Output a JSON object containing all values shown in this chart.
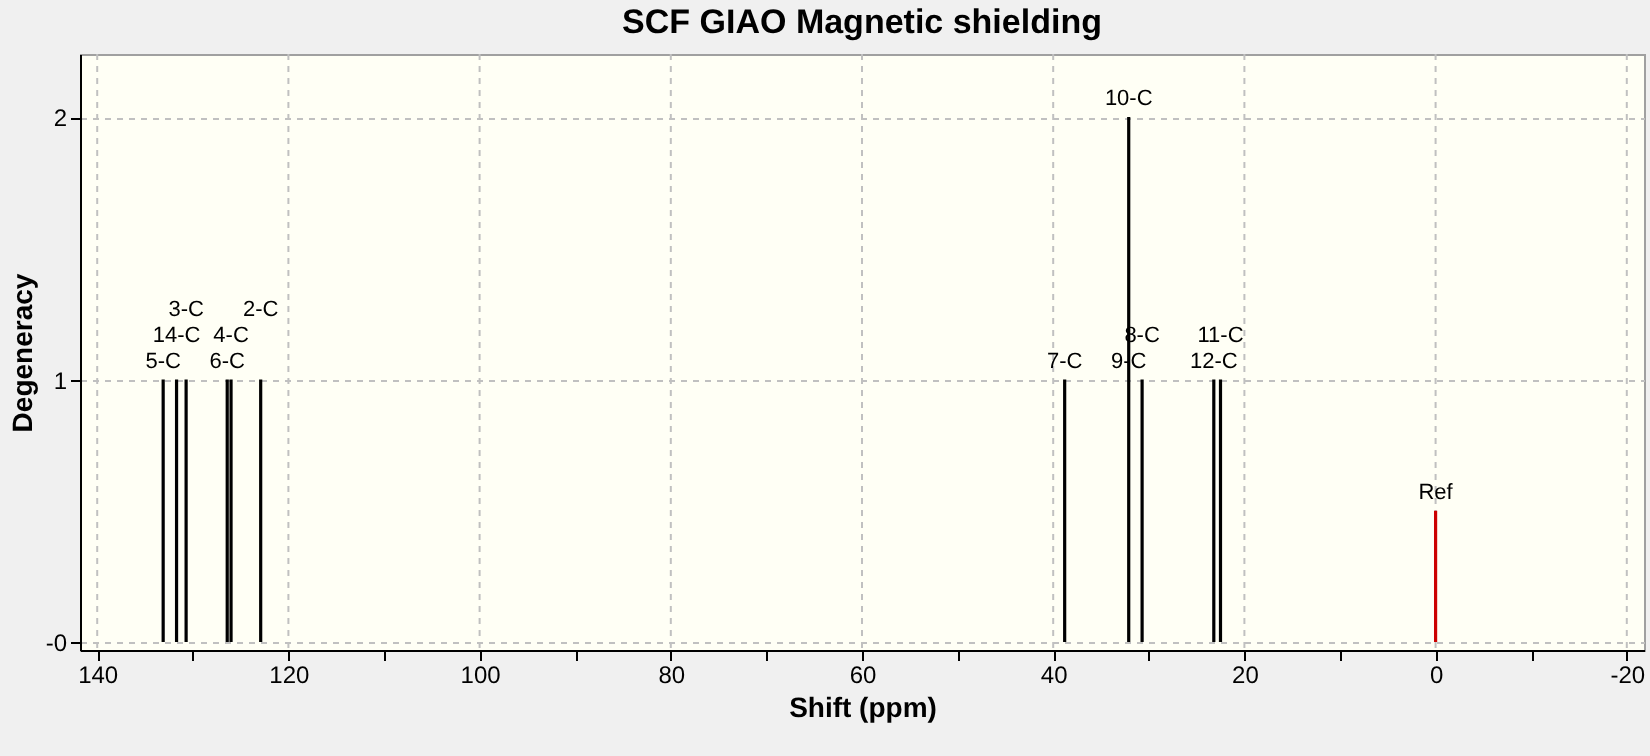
{
  "chart_data": {
    "type": "bar",
    "title": "SCF GIAO Magnetic shielding",
    "xlabel": "Shift (ppm)",
    "ylabel": "Degeneracy",
    "xlim": [
      141.8,
      -21.8
    ],
    "ylim": [
      -0.03,
      2.24
    ],
    "xticks": [
      140,
      {
        "value": 130,
        "label": null
      },
      120,
      {
        "value": 110,
        "label": null
      },
      100,
      {
        "value": 90,
        "label": null
      },
      80,
      {
        "value": 70,
        "label": null
      },
      60,
      {
        "value": 50,
        "label": null
      },
      40,
      {
        "value": 30,
        "label": null
      },
      20,
      {
        "value": 10,
        "label": null
      },
      0,
      {
        "value": -10,
        "label": null
      },
      -20
    ],
    "yticks": [
      {
        "value": 0,
        "label": "-0"
      },
      1,
      2
    ],
    "grid": true,
    "legend": false,
    "annotations": [
      {
        "text": "5-C",
        "x": 133.1,
        "y": 1
      },
      {
        "text": "14-C",
        "x": 131.7,
        "y": 1
      },
      {
        "text": "3-C",
        "x": 130.7,
        "y": 1
      },
      {
        "text": "6-C",
        "x": 126.4,
        "y": 1
      },
      {
        "text": "4-C",
        "x": 126.0,
        "y": 1
      },
      {
        "text": "2-C",
        "x": 122.9,
        "y": 1
      },
      {
        "text": "7-C",
        "x": 38.8,
        "y": 1
      },
      {
        "text": "10-C",
        "x": 32.1,
        "y": 2
      },
      {
        "text": "9-C",
        "x": 32.1,
        "y": 1
      },
      {
        "text": "8-C",
        "x": 30.7,
        "y": 1
      },
      {
        "text": "12-C",
        "x": 23.2,
        "y": 1
      },
      {
        "text": "11-C",
        "x": 22.5,
        "y": 1
      },
      {
        "text": "Ref",
        "x": 0,
        "y": 0.5
      }
    ],
    "series": [
      {
        "color": "#000000",
        "x": [
          133.1,
          131.7,
          130.7,
          126.4,
          126.0,
          122.9,
          38.8,
          32.1,
          30.7,
          23.2,
          22.5
        ],
        "values": [
          1,
          1,
          1,
          1,
          1,
          1,
          1,
          2,
          1,
          1,
          1
        ]
      },
      {
        "color": "#cc0000",
        "x": [
          0
        ],
        "values": [
          0.5
        ]
      }
    ]
  }
}
